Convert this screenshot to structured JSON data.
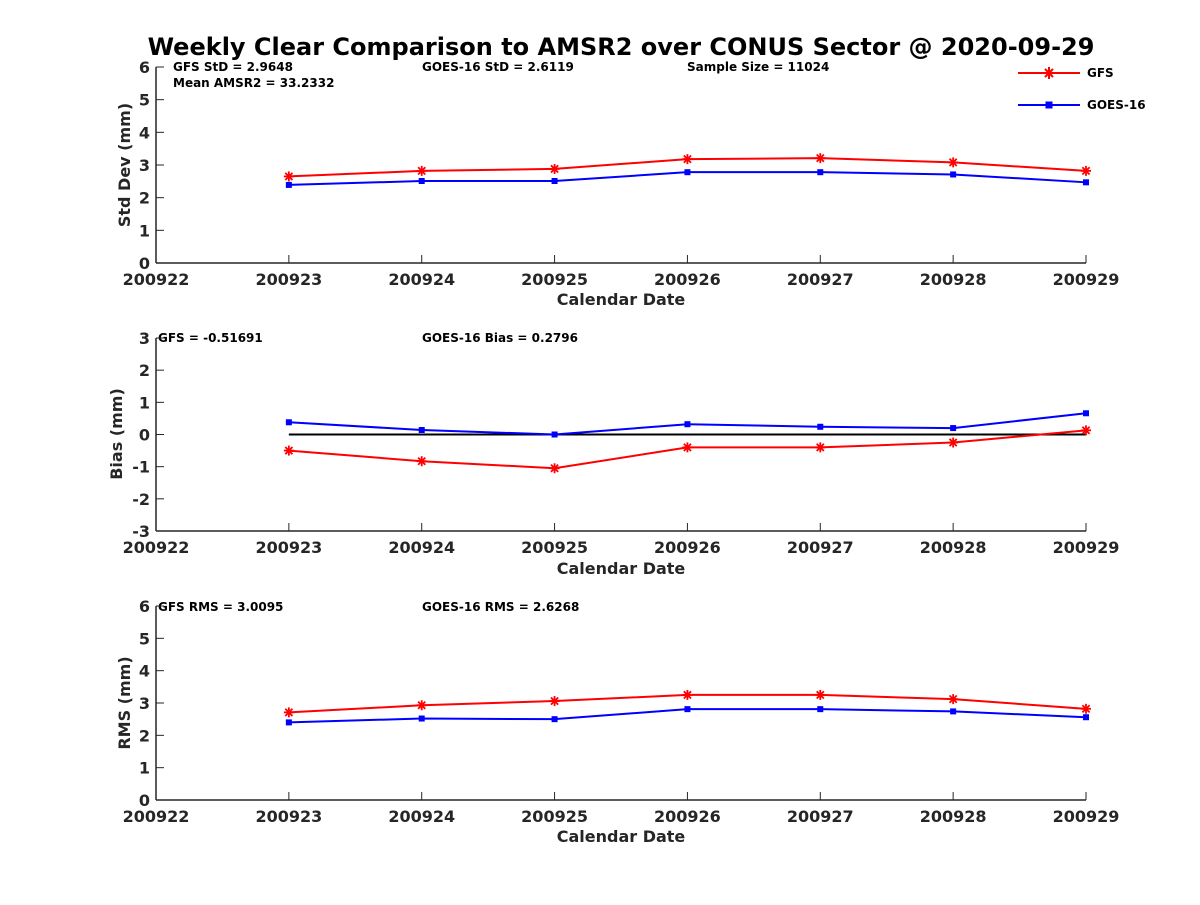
{
  "chart_data": {
    "type": "line",
    "title": "Weekly Clear Comparison to AMSR2 over CONUS Sector @ 2020-09-29",
    "x_ticks": [
      "200922",
      "200923",
      "200924",
      "200925",
      "200926",
      "200927",
      "200928",
      "200929"
    ],
    "legend": {
      "placement": "top-right",
      "entries": [
        {
          "name": "GFS",
          "color": "#ff0000",
          "marker": "asterisk"
        },
        {
          "name": "GOES-16",
          "color": "#0000ff",
          "marker": "square"
        }
      ]
    },
    "panels": [
      {
        "ylabel": "Std Dev (mm)",
        "xlabel": "Calendar Date",
        "ylim": [
          0,
          6
        ],
        "yticks": [
          "0",
          "1",
          "2",
          "3",
          "4",
          "5",
          "6"
        ],
        "annotations": [
          "GFS StD = 2.9648",
          "GOES-16 StD = 2.6119",
          "Sample Size = 11024",
          "Mean AMSR2 = 33.2332"
        ],
        "series": [
          {
            "name": "GFS",
            "color": "#ff0000",
            "x": [
              "200923",
              "200924",
              "200925",
              "200926",
              "200927",
              "200928",
              "200929"
            ],
            "values": [
              2.65,
              2.82,
              2.88,
              3.18,
              3.21,
              3.08,
              2.82
            ]
          },
          {
            "name": "GOES-16",
            "color": "#0000ff",
            "x": [
              "200923",
              "200924",
              "200925",
              "200926",
              "200927",
              "200928",
              "200929"
            ],
            "values": [
              2.39,
              2.51,
              2.51,
              2.78,
              2.78,
              2.71,
              2.47
            ]
          }
        ]
      },
      {
        "ylabel": "Bias (mm)",
        "xlabel": "Calendar Date",
        "ylim": [
          -3,
          3
        ],
        "yticks": [
          "-3",
          "-2",
          "-1",
          "0",
          "1",
          "2",
          "3"
        ],
        "annotations": [
          "GFS = -0.51691",
          "GOES-16 Bias  = 0.2796"
        ],
        "zero_line": true,
        "series": [
          {
            "name": "GFS",
            "color": "#ff0000",
            "x": [
              "200923",
              "200924",
              "200925",
              "200926",
              "200927",
              "200928",
              "200929"
            ],
            "values": [
              -0.5,
              -0.83,
              -1.05,
              -0.4,
              -0.4,
              -0.25,
              0.13
            ]
          },
          {
            "name": "GOES-16",
            "color": "#0000ff",
            "x": [
              "200923",
              "200924",
              "200925",
              "200926",
              "200927",
              "200928",
              "200929"
            ],
            "values": [
              0.38,
              0.14,
              0.0,
              0.32,
              0.24,
              0.2,
              0.66
            ]
          }
        ]
      },
      {
        "ylabel": "RMS (mm)",
        "xlabel": "Calendar Date",
        "ylim": [
          0,
          6
        ],
        "yticks": [
          "0",
          "1",
          "2",
          "3",
          "4",
          "5",
          "6"
        ],
        "annotations": [
          "GFS RMS = 3.0095",
          "GOES-16 RMS = 2.6268"
        ],
        "series": [
          {
            "name": "GFS",
            "color": "#ff0000",
            "x": [
              "200923",
              "200924",
              "200925",
              "200926",
              "200927",
              "200928",
              "200929"
            ],
            "values": [
              2.71,
              2.93,
              3.06,
              3.25,
              3.25,
              3.12,
              2.82
            ]
          },
          {
            "name": "GOES-16",
            "color": "#0000ff",
            "x": [
              "200923",
              "200924",
              "200925",
              "200926",
              "200927",
              "200928",
              "200929"
            ],
            "values": [
              2.4,
              2.52,
              2.5,
              2.81,
              2.81,
              2.74,
              2.56
            ]
          }
        ]
      }
    ]
  }
}
